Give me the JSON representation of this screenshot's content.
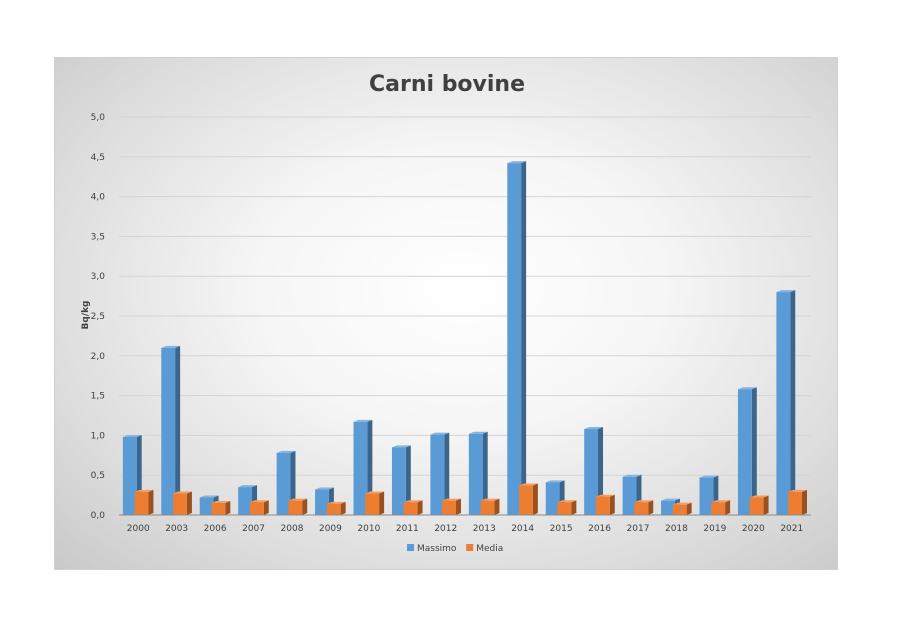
{
  "chart_data": {
    "type": "bar",
    "title": "Carni bovine",
    "xlabel": "",
    "ylabel": "Bq/kg",
    "ylim": [
      0,
      5
    ],
    "yticks": [
      "0,0",
      "0,5",
      "1,0",
      "1,5",
      "2,0",
      "2,5",
      "3,0",
      "3,5",
      "4,0",
      "4,5",
      "5,0"
    ],
    "grid": true,
    "legend_position": "bottom",
    "categories": [
      "2000",
      "2003",
      "2006",
      "2007",
      "2008",
      "2009",
      "2010",
      "2011",
      "2012",
      "2013",
      "2014",
      "2015",
      "2016",
      "2017",
      "2018",
      "2019",
      "2020",
      "2021"
    ],
    "series": [
      {
        "name": "Massimo",
        "color": "#5b9bd5",
        "values": [
          0.98,
          2.1,
          0.22,
          0.35,
          0.78,
          0.32,
          1.17,
          0.85,
          1.01,
          1.02,
          4.42,
          0.41,
          1.08,
          0.48,
          0.18,
          0.47,
          1.58,
          2.8
        ]
      },
      {
        "name": "Media",
        "color": "#ed7d31",
        "values": [
          0.29,
          0.27,
          0.15,
          0.16,
          0.18,
          0.14,
          0.27,
          0.16,
          0.18,
          0.18,
          0.37,
          0.16,
          0.23,
          0.16,
          0.13,
          0.16,
          0.22,
          0.29
        ]
      }
    ]
  }
}
